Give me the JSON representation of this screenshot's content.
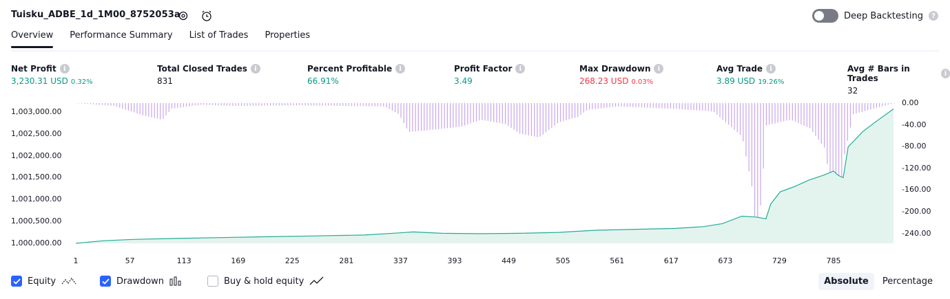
{
  "header": {
    "title": "Tuisku_ADBE_1d_1M00_8752053a",
    "deep_label": "Deep Backtesting"
  },
  "tabs": [
    "Overview",
    "Performance Summary",
    "List of Trades",
    "Properties"
  ],
  "metrics": [
    {
      "label": "Net Profit",
      "value": "3,230.31 USD",
      "pct": "0.32%",
      "color": "green"
    },
    {
      "label": "Total Closed Trades",
      "value": "831",
      "pct": "",
      "color": "dark"
    },
    {
      "label": "Percent Profitable",
      "value": "66.91%",
      "pct": "",
      "color": "green"
    },
    {
      "label": "Profit Factor",
      "value": "3.49",
      "pct": "",
      "color": "green"
    },
    {
      "label": "Max Drawdown",
      "value": "268.23 USD",
      "pct": "0.03%",
      "color": "red"
    },
    {
      "label": "Avg Trade",
      "value": "3.89 USD",
      "pct": "19.26%",
      "color": "green"
    },
    {
      "label": "Avg # Bars in Trades",
      "value": "32",
      "pct": "",
      "color": "dark"
    }
  ],
  "chart_data": {
    "type": "area",
    "x_ticks": [
      "1",
      "57",
      "113",
      "169",
      "225",
      "281",
      "337",
      "393",
      "449",
      "505",
      "561",
      "617",
      "673",
      "729",
      "785"
    ],
    "y_left_ticks": [
      "1,003,000.00",
      "1,002,500.00",
      "1,002,000.00",
      "1,001,500.00",
      "1,001,000.00",
      "1,000,500.00",
      "1,000,000.00"
    ],
    "y_right_ticks": [
      "0.00",
      "-40.00",
      "-80.00",
      "-120.00",
      "-160.00",
      "-200.00",
      "-240.00"
    ],
    "xlim": [
      1,
      847
    ],
    "y_left_range": [
      1000000,
      1003000
    ],
    "y_right_range": [
      -240,
      0
    ],
    "equity": [
      [
        1,
        1000000
      ],
      [
        30,
        1000060
      ],
      [
        60,
        1000090
      ],
      [
        100,
        1000110
      ],
      [
        150,
        1000130
      ],
      [
        200,
        1000150
      ],
      [
        250,
        1000170
      ],
      [
        300,
        1000190
      ],
      [
        337,
        1000240
      ],
      [
        350,
        1000260
      ],
      [
        380,
        1000230
      ],
      [
        420,
        1000220
      ],
      [
        460,
        1000230
      ],
      [
        500,
        1000250
      ],
      [
        540,
        1000300
      ],
      [
        580,
        1000320
      ],
      [
        620,
        1000340
      ],
      [
        650,
        1000380
      ],
      [
        670,
        1000450
      ],
      [
        690,
        1000620
      ],
      [
        705,
        1000600
      ],
      [
        715,
        1000560
      ],
      [
        720,
        1000900
      ],
      [
        730,
        1001180
      ],
      [
        745,
        1001300
      ],
      [
        760,
        1001450
      ],
      [
        775,
        1001560
      ],
      [
        785,
        1001650
      ],
      [
        790,
        1001550
      ],
      [
        795,
        1001500
      ],
      [
        800,
        1002200
      ],
      [
        815,
        1002550
      ],
      [
        830,
        1002800
      ],
      [
        847,
        1003070
      ]
    ],
    "buyhold": [],
    "drawdown": [
      [
        1,
        0
      ],
      [
        40,
        -5
      ],
      [
        70,
        -22
      ],
      [
        90,
        -30
      ],
      [
        100,
        -10
      ],
      [
        130,
        -3
      ],
      [
        169,
        -5
      ],
      [
        225,
        -4
      ],
      [
        281,
        -5
      ],
      [
        320,
        -6
      ],
      [
        335,
        -20
      ],
      [
        345,
        -52
      ],
      [
        370,
        -48
      ],
      [
        400,
        -42
      ],
      [
        420,
        -30
      ],
      [
        445,
        -38
      ],
      [
        460,
        -55
      ],
      [
        480,
        -62
      ],
      [
        500,
        -35
      ],
      [
        520,
        -25
      ],
      [
        530,
        -12
      ],
      [
        561,
        -6
      ],
      [
        617,
        -10
      ],
      [
        660,
        -15
      ],
      [
        690,
        -60
      ],
      [
        700,
        -150
      ],
      [
        705,
        -240
      ],
      [
        710,
        -170
      ],
      [
        715,
        -40
      ],
      [
        740,
        -30
      ],
      [
        760,
        -45
      ],
      [
        775,
        -80
      ],
      [
        785,
        -180
      ],
      [
        790,
        -250
      ],
      [
        795,
        -100
      ],
      [
        805,
        -20
      ],
      [
        830,
        -8
      ],
      [
        847,
        0
      ]
    ],
    "legend": [
      "Equity",
      "Drawdown",
      "Buy & hold equity"
    ],
    "legend_checked": [
      true,
      true,
      false
    ],
    "grid": false,
    "colors": {
      "equity_line": "#22ab94",
      "equity_fill": "#e3f4ef",
      "drawdown": "#c9a5ec",
      "accent": "#2962ff"
    }
  },
  "mode": {
    "options": [
      "Absolute",
      "Percentage"
    ],
    "selected": "Absolute"
  }
}
